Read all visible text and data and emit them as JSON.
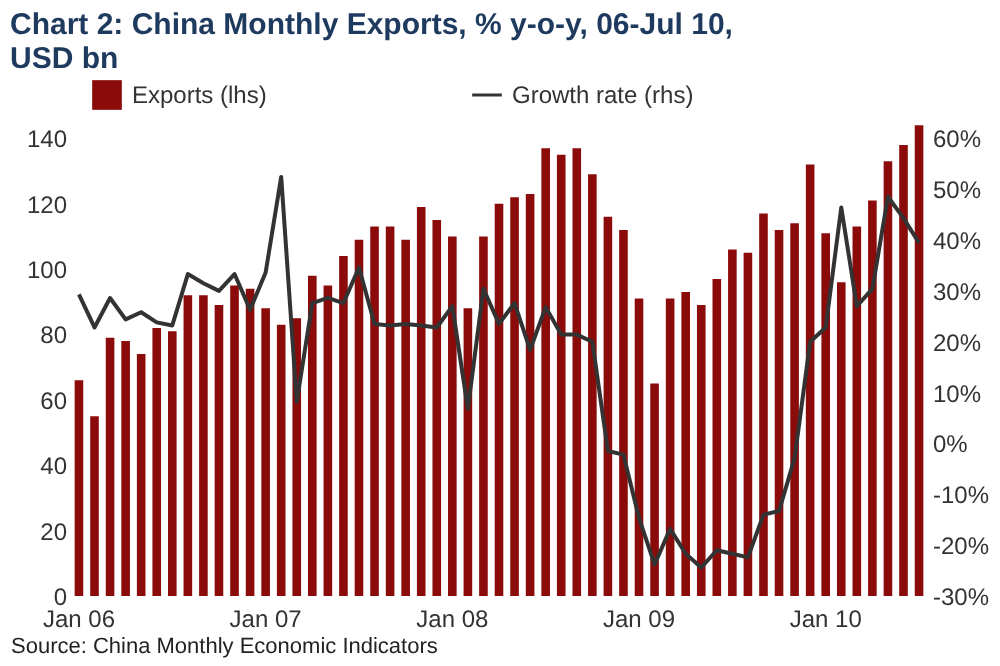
{
  "chart_data": {
    "type": "bar",
    "title": [
      "Chart 2: China Monthly Exports, % y-o-y, 06-Jul 10,",
      "USD bn"
    ],
    "categories": [
      "Jan 06",
      null,
      null,
      null,
      null,
      null,
      null,
      null,
      null,
      null,
      null,
      null,
      "Jan 07",
      null,
      null,
      null,
      null,
      null,
      null,
      null,
      null,
      null,
      null,
      null,
      "Jan 08",
      null,
      null,
      null,
      null,
      null,
      null,
      null,
      null,
      null,
      null,
      null,
      "Jan 09",
      null,
      null,
      null,
      null,
      null,
      null,
      null,
      null,
      null,
      null,
      null,
      "Jan 10",
      null,
      null,
      null,
      null,
      null,
      null
    ],
    "series": [
      {
        "name": "Exports (lhs)",
        "axis": "y",
        "color": "#8b0a0a",
        "values": [
          66,
          55,
          79,
          78,
          74,
          82,
          81,
          92,
          92,
          89,
          95,
          94,
          88,
          83,
          85,
          98,
          95,
          104,
          109,
          113,
          113,
          109,
          119,
          115,
          110,
          88,
          110,
          120,
          122,
          123,
          137,
          135,
          137,
          129,
          116,
          112,
          91,
          65,
          91,
          93,
          89,
          97,
          106,
          105,
          117,
          112,
          114,
          132,
          111,
          96,
          113,
          121,
          133,
          138,
          144
        ]
      },
      {
        "name": "Growth rate (rhs)",
        "type": "line",
        "axis": "y2",
        "color": "#333333",
        "values": [
          29.3,
          22.8,
          28.6,
          24.4,
          25.8,
          23.8,
          23.2,
          33.3,
          31.5,
          30,
          33.3,
          26.3,
          33.6,
          52.4,
          8.2,
          27.6,
          28.6,
          27.6,
          34.6,
          23.5,
          23.2,
          23.5,
          23.2,
          22.8,
          27,
          6.8,
          30.4,
          23.5,
          27.6,
          18.4,
          26.8,
          21.4,
          21.4,
          20,
          -1.5,
          -2.2,
          -14.7,
          -23.8,
          -16.8,
          -21.7,
          -24.4,
          -21,
          -21.7,
          -22.4,
          -14,
          -13.3,
          -2.9,
          20,
          22.8,
          46.4,
          27,
          30.4,
          48.5,
          44.3,
          39.4
        ]
      }
    ],
    "ylim": [
      0,
      145
    ],
    "yticks": [
      0,
      20,
      40,
      60,
      80,
      100,
      120,
      140
    ],
    "y2lim": [
      -30,
      63.2
    ],
    "y2ticks": [
      {
        "value": -30,
        "label": "-30%"
      },
      {
        "value": -20,
        "label": "-20%"
      },
      {
        "value": -10,
        "label": "-10%"
      },
      {
        "value": 0,
        "label": "0%"
      },
      {
        "value": 10,
        "label": "10%"
      },
      {
        "value": 20,
        "label": "20%"
      },
      {
        "value": 30,
        "label": "30%"
      },
      {
        "value": 40,
        "label": "40%"
      },
      {
        "value": 50,
        "label": "50%"
      },
      {
        "value": 60,
        "label": "60%"
      }
    ],
    "grid": false,
    "legend": "top",
    "line_style": "solid",
    "marker": "none",
    "annotations": [
      "Source: China Monthly Economic Indicators"
    ]
  }
}
